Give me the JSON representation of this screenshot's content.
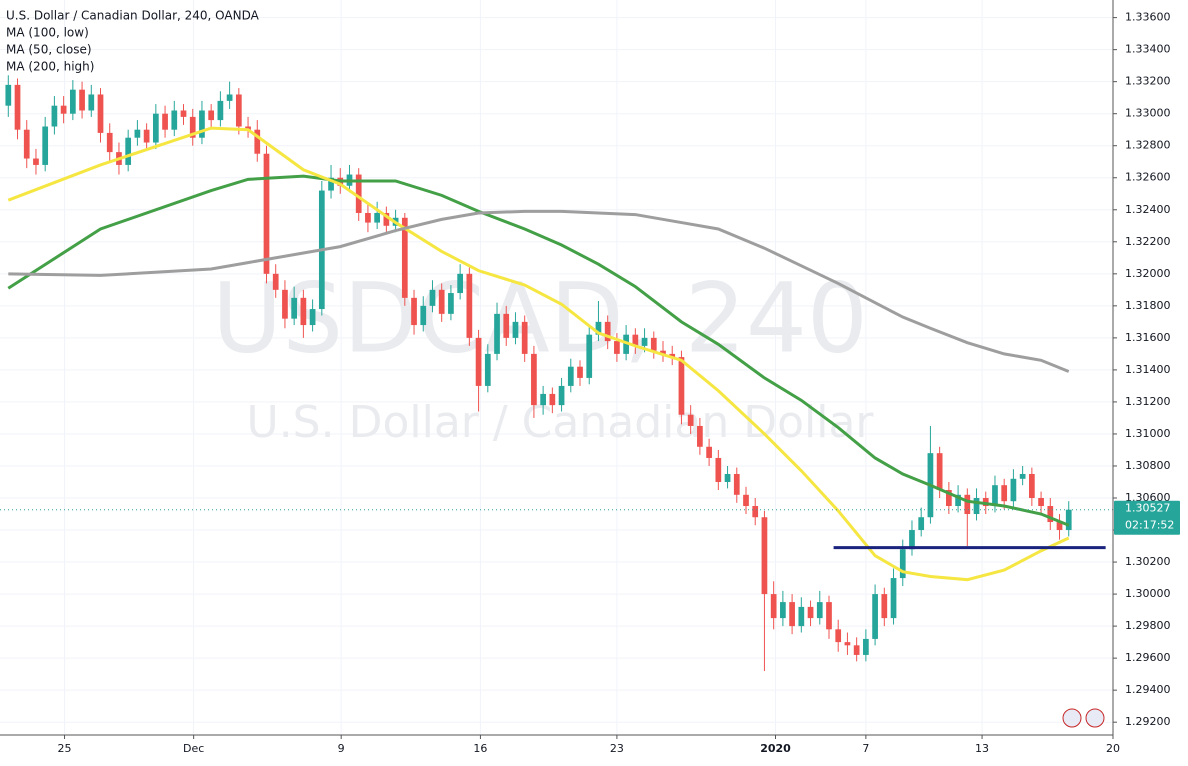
{
  "chart_data": {
    "type": "candlestick",
    "title": "U.S. Dollar / Canadian Dollar, 240, OANDA",
    "watermark": [
      "USDCAD, 240",
      "U.S. Dollar / Canadian Dollar"
    ],
    "up_color": "#26a69a",
    "down_color": "#ef5350",
    "open": [
      1.3305,
      1.3318,
      1.329,
      1.3272,
      1.3268,
      1.3292,
      1.3305,
      1.33,
      1.3315,
      1.3302,
      1.3312,
      1.3288,
      1.3276,
      1.3268,
      1.3285,
      1.329,
      1.3282,
      1.33,
      1.329,
      1.3302,
      1.3298,
      1.3285,
      1.3302,
      1.3296,
      1.3308,
      1.3312,
      1.3292,
      1.329,
      1.3275,
      1.32,
      1.319,
      1.3172,
      1.3185,
      1.3168,
      1.3178,
      1.3252,
      1.326,
      1.3255,
      1.3262,
      1.3238,
      1.3232,
      1.3238,
      1.323,
      1.3235,
      1.3185,
      1.3168,
      1.318,
      1.319,
      1.3175,
      1.3188,
      1.32,
      1.316,
      1.313,
      1.315,
      1.3175,
      1.316,
      1.317,
      1.315,
      1.3118,
      1.3125,
      1.3118,
      1.313,
      1.3142,
      1.3135,
      1.3162,
      1.317,
      1.3158,
      1.315,
      1.3162,
      1.3155,
      1.316,
      1.3152,
      1.315,
      1.3148,
      1.3112,
      1.3105,
      1.3092,
      1.3085,
      1.307,
      1.3075,
      1.3062,
      1.3055,
      1.3048,
      1.3,
      1.2985,
      1.2995,
      1.298,
      1.2992,
      1.2985,
      1.2995,
      1.2978,
      1.297,
      1.2968,
      1.2962,
      1.2972,
      1.3,
      1.2985,
      1.301,
      1.3028,
      1.304,
      1.3048,
      1.3088,
      1.3065,
      1.3055,
      1.3062,
      1.305,
      1.306,
      1.3055,
      1.3068,
      1.3058,
      1.3072,
      1.3075,
      1.306,
      1.3055,
      1.3045,
      1.304
    ],
    "high": [
      1.3324,
      1.3322,
      1.3296,
      1.3278,
      1.3298,
      1.3311,
      1.3311,
      1.3321,
      1.332,
      1.3318,
      1.3316,
      1.3294,
      1.3282,
      1.329,
      1.3296,
      1.3294,
      1.3306,
      1.3305,
      1.3308,
      1.3306,
      1.3303,
      1.3308,
      1.3306,
      1.3314,
      1.332,
      1.3316,
      1.3298,
      1.3296,
      1.328,
      1.3206,
      1.3196,
      1.3192,
      1.319,
      1.3184,
      1.3258,
      1.3268,
      1.3266,
      1.3268,
      1.3266,
      1.3244,
      1.3245,
      1.3242,
      1.324,
      1.3238,
      1.319,
      1.3186,
      1.3196,
      1.3194,
      1.3193,
      1.3206,
      1.3204,
      1.3165,
      1.3156,
      1.3182,
      1.318,
      1.3176,
      1.3174,
      1.3155,
      1.313,
      1.3129,
      1.3135,
      1.3147,
      1.3146,
      1.3168,
      1.3183,
      1.3174,
      1.3163,
      1.3168,
      1.3166,
      1.3166,
      1.3164,
      1.3158,
      1.3155,
      1.3152,
      1.3118,
      1.311,
      1.3097,
      1.309,
      1.308,
      1.3079,
      1.3067,
      1.306,
      1.3052,
      1.3008,
      1.3002,
      1.3,
      1.2998,
      1.2996,
      1.3002,
      1.2999,
      1.2984,
      1.2976,
      1.2973,
      1.2978,
      1.3006,
      1.3004,
      1.3016,
      1.3034,
      1.3046,
      1.3054,
      1.3105,
      1.3092,
      1.307,
      1.3068,
      1.3066,
      1.3066,
      1.3064,
      1.3074,
      1.3072,
      1.3078,
      1.308,
      1.3079,
      1.3064,
      1.306,
      1.305,
      1.3058
    ],
    "low": [
      1.3298,
      1.3284,
      1.3266,
      1.3262,
      1.3264,
      1.3287,
      1.3294,
      1.3296,
      1.3297,
      1.3298,
      1.3282,
      1.327,
      1.3262,
      1.3264,
      1.328,
      1.3277,
      1.3278,
      1.3285,
      1.3286,
      1.3293,
      1.328,
      1.3281,
      1.3291,
      1.3292,
      1.3303,
      1.3287,
      1.3285,
      1.327,
      1.3194,
      1.3185,
      1.3166,
      1.3168,
      1.316,
      1.3164,
      1.3174,
      1.3247,
      1.325,
      1.3251,
      1.3233,
      1.3226,
      1.3228,
      1.3225,
      1.3226,
      1.318,
      1.3162,
      1.3164,
      1.3176,
      1.317,
      1.3171,
      1.3184,
      1.3155,
      1.3114,
      1.3126,
      1.3146,
      1.3155,
      1.3156,
      1.3145,
      1.311,
      1.3112,
      1.3113,
      1.3114,
      1.3126,
      1.313,
      1.3131,
      1.3158,
      1.3153,
      1.3145,
      1.3146,
      1.315,
      1.3151,
      1.3147,
      1.3145,
      1.3143,
      1.3106,
      1.31,
      1.3087,
      1.308,
      1.3065,
      1.3066,
      1.3057,
      1.305,
      1.3043,
      1.2952,
      1.2978,
      1.298,
      1.2975,
      1.2976,
      1.298,
      1.2981,
      1.2972,
      1.2964,
      1.2962,
      1.2958,
      1.2958,
      1.2968,
      1.298,
      1.2981,
      1.3005,
      1.3024,
      1.3036,
      1.3044,
      1.306,
      1.305,
      1.3051,
      1.303,
      1.3046,
      1.305,
      1.3051,
      1.3053,
      1.3054,
      1.3068,
      1.3055,
      1.305,
      1.304,
      1.3034,
      1.3036
    ],
    "close": [
      1.3318,
      1.329,
      1.3272,
      1.3268,
      1.3292,
      1.3305,
      1.33,
      1.3315,
      1.3302,
      1.3312,
      1.3288,
      1.3276,
      1.3268,
      1.3285,
      1.329,
      1.3282,
      1.33,
      1.329,
      1.3302,
      1.3298,
      1.3285,
      1.3302,
      1.3296,
      1.3308,
      1.3312,
      1.3292,
      1.329,
      1.3275,
      1.32,
      1.319,
      1.3172,
      1.3185,
      1.3168,
      1.3178,
      1.3252,
      1.326,
      1.3255,
      1.3262,
      1.3238,
      1.3232,
      1.3238,
      1.323,
      1.3235,
      1.3185,
      1.3168,
      1.318,
      1.319,
      1.3175,
      1.3188,
      1.32,
      1.316,
      1.313,
      1.315,
      1.3175,
      1.316,
      1.317,
      1.315,
      1.3118,
      1.3125,
      1.3118,
      1.313,
      1.3142,
      1.3135,
      1.3162,
      1.317,
      1.3158,
      1.315,
      1.3162,
      1.3155,
      1.316,
      1.3152,
      1.315,
      1.3148,
      1.3112,
      1.3105,
      1.3092,
      1.3085,
      1.307,
      1.3075,
      1.3062,
      1.3055,
      1.3048,
      1.3,
      1.2985,
      1.2995,
      1.298,
      1.2992,
      1.2985,
      1.2995,
      1.2978,
      1.297,
      1.2968,
      1.2962,
      1.2972,
      1.3,
      1.2985,
      1.301,
      1.3028,
      1.304,
      1.3048,
      1.3088,
      1.3065,
      1.3055,
      1.3062,
      1.305,
      1.306,
      1.3055,
      1.3068,
      1.3058,
      1.3072,
      1.3075,
      1.306,
      1.3055,
      1.3045,
      1.304,
      1.30527
    ],
    "series": [
      {
        "name": "MA (100, low)",
        "color": "#43a047",
        "x": [
          0,
          10,
          22,
          26,
          32,
          36,
          42,
          47,
          51,
          56,
          60,
          64,
          68,
          73,
          77,
          82,
          86,
          90,
          94,
          97,
          100,
          104,
          108,
          112,
          115
        ],
        "values": [
          1.3191,
          1.3228,
          1.3252,
          1.3259,
          1.3261,
          1.3258,
          1.3258,
          1.3249,
          1.3239,
          1.3228,
          1.3218,
          1.3206,
          1.3192,
          1.317,
          1.3156,
          1.3135,
          1.3121,
          1.3104,
          1.3085,
          1.3075,
          1.3068,
          1.3058,
          1.3055,
          1.305,
          1.3043
        ]
      },
      {
        "name": "MA (50, close)",
        "color": "#f5e642",
        "x": [
          0,
          10,
          22,
          26,
          32,
          36,
          42,
          47,
          51,
          56,
          60,
          64,
          68,
          73,
          77,
          82,
          86,
          90,
          94,
          97,
          100,
          104,
          108,
          112,
          115
        ],
        "values": [
          1.3246,
          1.3268,
          1.3291,
          1.329,
          1.3265,
          1.3256,
          1.3232,
          1.3214,
          1.3202,
          1.3193,
          1.3181,
          1.3163,
          1.3155,
          1.3146,
          1.3127,
          1.31,
          1.3077,
          1.3052,
          1.3024,
          1.3014,
          1.3011,
          1.3009,
          1.3015,
          1.3027,
          1.3035
        ]
      },
      {
        "name": "MA (200, high)",
        "color": "#9e9e9e",
        "x": [
          0,
          10,
          22,
          26,
          32,
          36,
          42,
          47,
          51,
          56,
          60,
          64,
          68,
          73,
          77,
          82,
          86,
          90,
          94,
          97,
          100,
          104,
          108,
          112,
          115
        ],
        "values": [
          1.32,
          1.3199,
          1.3203,
          1.3207,
          1.3213,
          1.3217,
          1.3227,
          1.3234,
          1.3238,
          1.3239,
          1.3239,
          1.3238,
          1.3237,
          1.3232,
          1.3228,
          1.3216,
          1.3205,
          1.3194,
          1.3182,
          1.3173,
          1.3166,
          1.3157,
          1.315,
          1.3146,
          1.3139
        ]
      }
    ],
    "support": {
      "value": 1.3029,
      "x": [
        89.5,
        119
      ],
      "color": "#1a237e"
    },
    "countdown": "02:17:52",
    "xlim": [
      -0.9,
      119.8
    ],
    "ylim": [
      1.2912,
      1.3371
    ],
    "xticks": [
      {
        "value": 6.1,
        "label": "25"
      },
      {
        "value": 20.1,
        "label": "Dec"
      },
      {
        "value": 36.1,
        "label": "9"
      },
      {
        "value": 51.2,
        "label": "16"
      },
      {
        "value": 66.0,
        "label": "23"
      },
      {
        "value": 83.2,
        "label": "2020"
      },
      {
        "value": 93.0,
        "label": "7"
      },
      {
        "value": 105.6,
        "label": "13"
      },
      {
        "value": 119.8,
        "label": "20"
      }
    ],
    "yticks": [
      {
        "value": 1.292,
        "label": "1.29200"
      },
      {
        "value": 1.294,
        "label": "1.29400"
      },
      {
        "value": 1.296,
        "label": "1.29600"
      },
      {
        "value": 1.298,
        "label": "1.29800"
      },
      {
        "value": 1.3,
        "label": "1.30000"
      },
      {
        "value": 1.302,
        "label": "1.30200"
      },
      {
        "value": 1.304,
        "label": "1.30400"
      },
      {
        "value": 1.306,
        "label": "1.30600"
      },
      {
        "value": 1.308,
        "label": "1.30800"
      },
      {
        "value": 1.31,
        "label": "1.31000"
      },
      {
        "value": 1.312,
        "label": "1.31200"
      },
      {
        "value": 1.314,
        "label": "1.31400"
      },
      {
        "value": 1.316,
        "label": "1.31600"
      },
      {
        "value": 1.318,
        "label": "1.31800"
      },
      {
        "value": 1.32,
        "label": "1.32000"
      },
      {
        "value": 1.322,
        "label": "1.32200"
      },
      {
        "value": 1.324,
        "label": "1.32400"
      },
      {
        "value": 1.326,
        "label": "1.32600"
      },
      {
        "value": 1.328,
        "label": "1.32800"
      },
      {
        "value": 1.33,
        "label": "1.33000"
      },
      {
        "value": 1.332,
        "label": "1.33200"
      },
      {
        "value": 1.334,
        "label": "1.33400"
      },
      {
        "value": 1.336,
        "label": "1.33600"
      }
    ],
    "grid": true
  }
}
